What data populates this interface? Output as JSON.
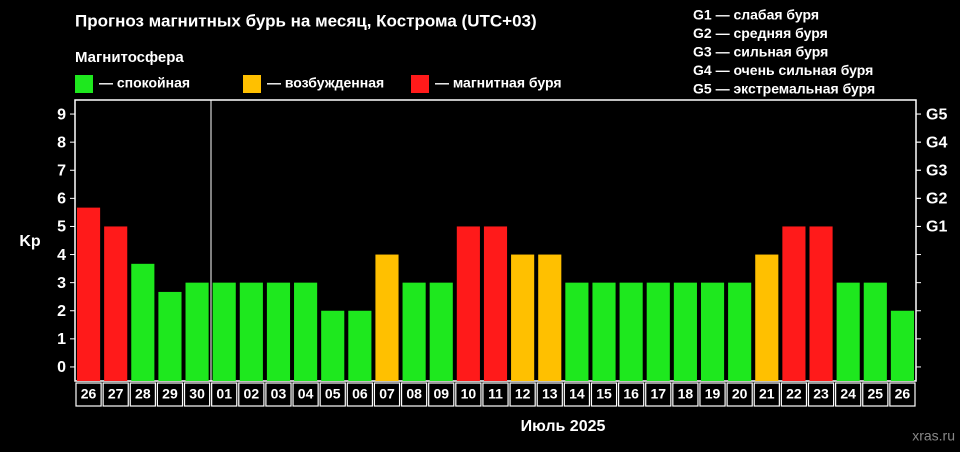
{
  "chart_data": {
    "type": "bar",
    "title": "Прогноз магнитных бурь на месяц, Кострома (UTC+03)",
    "legend_title": "Магнитосфера",
    "legend": [
      {
        "label": "— спокойная",
        "color": "#1ee81e"
      },
      {
        "label": "— возбужденная",
        "color": "#ffc000"
      },
      {
        "label": "— магнитная буря",
        "color": "#ff1a1a"
      }
    ],
    "scale_notes": [
      "G1 — слабая буря",
      "G2 — средняя буря",
      "G3 — сильная буря",
      "G4 — очень сильная буря",
      "G5 — экстремальная буря"
    ],
    "y_label": "Kp",
    "x_label": "Июль 2025",
    "watermark": "xras.ru",
    "categories": [
      "26",
      "27",
      "28",
      "29",
      "30",
      "01",
      "02",
      "03",
      "04",
      "05",
      "06",
      "07",
      "08",
      "09",
      "10",
      "11",
      "12",
      "13",
      "14",
      "15",
      "16",
      "17",
      "18",
      "19",
      "20",
      "21",
      "22",
      "23",
      "24",
      "25",
      "26"
    ],
    "values": [
      5.67,
      5,
      3.67,
      2.67,
      3,
      3,
      3,
      3,
      3,
      2,
      2,
      4,
      3,
      3,
      5,
      5,
      4,
      4,
      3,
      3,
      3,
      3,
      3,
      3,
      3,
      4,
      5,
      5,
      3,
      3,
      2
    ],
    "colors": [
      "#ff1a1a",
      "#ff1a1a",
      "#1ee81e",
      "#1ee81e",
      "#1ee81e",
      "#1ee81e",
      "#1ee81e",
      "#1ee81e",
      "#1ee81e",
      "#1ee81e",
      "#1ee81e",
      "#ffc000",
      "#1ee81e",
      "#1ee81e",
      "#ff1a1a",
      "#ff1a1a",
      "#ffc000",
      "#ffc000",
      "#1ee81e",
      "#1ee81e",
      "#1ee81e",
      "#1ee81e",
      "#1ee81e",
      "#1ee81e",
      "#1ee81e",
      "#ffc000",
      "#ff1a1a",
      "#ff1a1a",
      "#1ee81e",
      "#1ee81e",
      "#1ee81e"
    ],
    "ylim": [
      -0.5,
      9.5
    ],
    "yticks": [
      0,
      1,
      2,
      3,
      4,
      5,
      6,
      7,
      8,
      9
    ],
    "y2lim": [
      -0.5,
      9.5
    ],
    "y2ticks": [
      {
        "value": 5,
        "label": "G1"
      },
      {
        "value": 6,
        "label": "G2"
      },
      {
        "value": 7,
        "label": "G3"
      },
      {
        "value": 8,
        "label": "G4"
      },
      {
        "value": 9,
        "label": "G5"
      }
    ]
  }
}
